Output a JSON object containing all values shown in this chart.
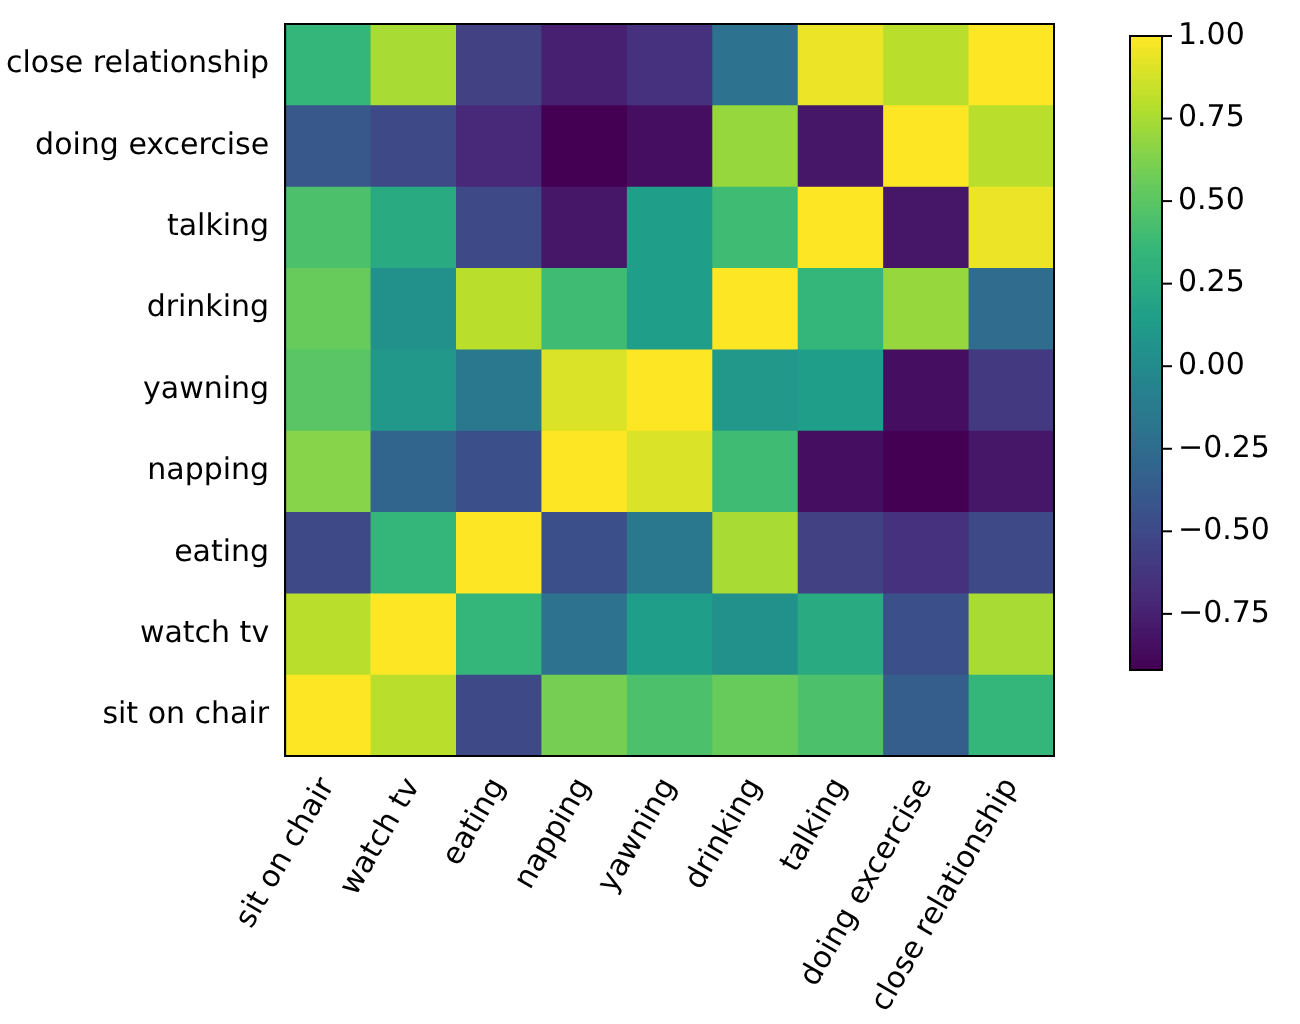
{
  "chart_data": {
    "type": "heatmap",
    "categories": [
      "sit on chair",
      "watch tv",
      "eating",
      "napping",
      "yawning",
      "drinking",
      "talking",
      "doing excercise",
      "close relationship"
    ],
    "y_categories": [
      "close relationship",
      "doing excercise",
      "talking",
      "drinking",
      "yawning",
      "napping",
      "eating",
      "watch tv",
      "sit on chair"
    ],
    "cells": [
      [
        0.35,
        0.75,
        -0.55,
        -0.75,
        -0.65,
        -0.2,
        0.95,
        0.8,
        1
      ],
      [
        -0.4,
        -0.5,
        -0.7,
        -0.92,
        -0.85,
        0.7,
        -0.8,
        1,
        0.8
      ],
      [
        0.45,
        0.25,
        -0.5,
        -0.8,
        0.15,
        0.4,
        1,
        -0.8,
        0.95
      ],
      [
        0.55,
        0.05,
        0.8,
        0.4,
        0.15,
        1,
        0.35,
        0.7,
        -0.25
      ],
      [
        0.5,
        0.1,
        -0.15,
        0.9,
        1,
        0.1,
        0.15,
        -0.85,
        -0.6
      ],
      [
        0.65,
        -0.3,
        -0.45,
        1,
        0.9,
        0.4,
        -0.85,
        -0.92,
        -0.8
      ],
      [
        -0.5,
        0.35,
        1,
        -0.45,
        -0.15,
        0.75,
        -0.55,
        -0.65,
        -0.5
      ],
      [
        0.8,
        1,
        0.35,
        -0.2,
        0.15,
        0.05,
        0.25,
        -0.45,
        0.75
      ],
      [
        1,
        0.8,
        -0.5,
        0.6,
        0.45,
        0.55,
        0.45,
        -0.35,
        0.35
      ]
    ],
    "clim": [
      -0.92,
      1
    ],
    "cticks": [
      {
        "value": -0.75,
        "label": "−0.75"
      },
      {
        "value": -0.5,
        "label": "−0.50"
      },
      {
        "value": -0.25,
        "label": "−0.25"
      },
      {
        "value": 0,
        "label": "0.00"
      },
      {
        "value": 0.25,
        "label": "0.25"
      },
      {
        "value": 0.5,
        "label": "0.50"
      },
      {
        "value": 0.75,
        "label": "0.75"
      },
      {
        "value": 1,
        "label": "1.00"
      }
    ]
  }
}
